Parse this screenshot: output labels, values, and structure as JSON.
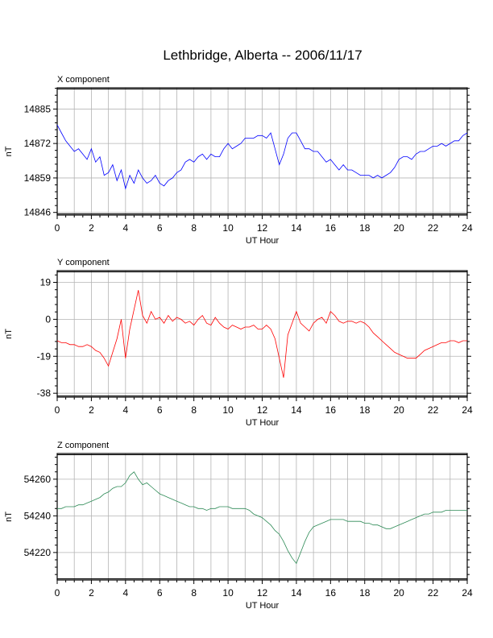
{
  "title": "Lethbridge, Alberta -- 2006/11/17",
  "chart_data": [
    {
      "type": "line",
      "panel_label": "X component",
      "ylabel": "nT",
      "xlabel": "UT Hour",
      "xlim": [
        0,
        24
      ],
      "ylim": [
        14845,
        14893
      ],
      "x_ticks": [
        0,
        2,
        4,
        6,
        8,
        10,
        12,
        14,
        16,
        18,
        20,
        22,
        24
      ],
      "y_ticks": [
        14846,
        14859,
        14872,
        14885
      ],
      "color": "#0000ff",
      "grid": true,
      "x": [
        0,
        0.25,
        0.5,
        0.75,
        1,
        1.25,
        1.5,
        1.75,
        2,
        2.25,
        2.5,
        2.75,
        3,
        3.25,
        3.5,
        3.75,
        4,
        4.25,
        4.5,
        4.75,
        5,
        5.25,
        5.5,
        5.75,
        6,
        6.25,
        6.5,
        6.75,
        7,
        7.25,
        7.5,
        7.75,
        8,
        8.25,
        8.5,
        8.75,
        9,
        9.25,
        9.5,
        9.75,
        10,
        10.25,
        10.5,
        10.75,
        11,
        11.25,
        11.5,
        11.75,
        12,
        12.25,
        12.5,
        12.75,
        13,
        13.25,
        13.5,
        13.75,
        14,
        14.25,
        14.5,
        14.75,
        15,
        15.25,
        15.5,
        15.75,
        16,
        16.25,
        16.5,
        16.75,
        17,
        17.25,
        17.5,
        17.75,
        18,
        18.25,
        18.5,
        18.75,
        19,
        19.25,
        19.5,
        19.75,
        20,
        20.25,
        20.5,
        20.75,
        21,
        21.25,
        21.5,
        21.75,
        22,
        22.25,
        22.5,
        22.75,
        23,
        23.25,
        23.5,
        23.75,
        24
      ],
      "y": [
        14879,
        14876,
        14873,
        14871,
        14869,
        14870,
        14868,
        14866,
        14870,
        14865,
        14867,
        14860,
        14861,
        14864,
        14858,
        14862,
        14855,
        14860,
        14857,
        14862,
        14859,
        14857,
        14858,
        14860,
        14857,
        14856,
        14858,
        14859,
        14861,
        14862,
        14865,
        14866,
        14865,
        14867,
        14868,
        14866,
        14868,
        14867,
        14867,
        14870,
        14872,
        14870,
        14871,
        14872,
        14874,
        14874,
        14874,
        14875,
        14875,
        14874,
        14876,
        14870,
        14864,
        14868,
        14874,
        14876,
        14876,
        14873,
        14870,
        14870,
        14869,
        14869,
        14867,
        14865,
        14866,
        14864,
        14862,
        14864,
        14862,
        14862,
        14861,
        14860,
        14860,
        14860,
        14859,
        14860,
        14859,
        14860,
        14861,
        14863,
        14866,
        14867,
        14867,
        14866,
        14868,
        14869,
        14869,
        14870,
        14871,
        14871,
        14872,
        14871,
        14872,
        14873,
        14873,
        14875,
        14876
      ]
    },
    {
      "type": "line",
      "panel_label": "Y component",
      "ylabel": "nT",
      "xlabel": "UT Hour",
      "xlim": [
        0,
        24
      ],
      "ylim": [
        -40,
        25
      ],
      "x_ticks": [
        0,
        2,
        4,
        6,
        8,
        10,
        12,
        14,
        16,
        18,
        20,
        22,
        24
      ],
      "y_ticks": [
        -38,
        -19,
        0,
        19
      ],
      "color": "#ff0000",
      "grid": true,
      "x": [
        0,
        0.25,
        0.5,
        0.75,
        1,
        1.25,
        1.5,
        1.75,
        2,
        2.25,
        2.5,
        2.75,
        3,
        3.25,
        3.5,
        3.75,
        4,
        4.25,
        4.5,
        4.75,
        5,
        5.25,
        5.5,
        5.75,
        6,
        6.25,
        6.5,
        6.75,
        7,
        7.25,
        7.5,
        7.75,
        8,
        8.25,
        8.5,
        8.75,
        9,
        9.25,
        9.5,
        9.75,
        10,
        10.25,
        10.5,
        10.75,
        11,
        11.25,
        11.5,
        11.75,
        12,
        12.25,
        12.5,
        12.75,
        13,
        13.25,
        13.5,
        13.75,
        14,
        14.25,
        14.5,
        14.75,
        15,
        15.25,
        15.5,
        15.75,
        16,
        16.25,
        16.5,
        16.75,
        17,
        17.25,
        17.5,
        17.75,
        18,
        18.25,
        18.5,
        18.75,
        19,
        19.25,
        19.5,
        19.75,
        20,
        20.25,
        20.5,
        20.75,
        21,
        21.25,
        21.5,
        21.75,
        22,
        22.25,
        22.5,
        22.75,
        23,
        23.25,
        23.5,
        23.75,
        24
      ],
      "y": [
        -11,
        -12,
        -12,
        -13,
        -13,
        -14,
        -14,
        -13,
        -14,
        -16,
        -17,
        -20,
        -24,
        -17,
        -10,
        0,
        -20,
        -5,
        5,
        15,
        2,
        -2,
        4,
        0,
        1,
        -2,
        2,
        -1,
        1,
        0,
        -2,
        -1,
        -3,
        0,
        2,
        -2,
        -3,
        1,
        -2,
        -4,
        -5,
        -3,
        -4,
        -5,
        -4,
        -4,
        -3,
        -5,
        -5,
        -3,
        -5,
        -10,
        -20,
        -30,
        -8,
        -2,
        4,
        -2,
        -4,
        -6,
        -2,
        0,
        1,
        -2,
        4,
        2,
        -1,
        -2,
        -1,
        -1,
        -2,
        -1,
        -2,
        -4,
        -7,
        -9,
        -11,
        -13,
        -15,
        -17,
        -18,
        -19,
        -20,
        -20,
        -20,
        -18,
        -16,
        -15,
        -14,
        -13,
        -12,
        -12,
        -11,
        -11,
        -12,
        -11,
        -11
      ]
    },
    {
      "type": "line",
      "panel_label": "Z component",
      "ylabel": "nT",
      "xlabel": "UT Hour",
      "xlim": [
        0,
        24
      ],
      "ylim": [
        54205,
        54274
      ],
      "x_ticks": [
        0,
        2,
        4,
        6,
        8,
        10,
        12,
        14,
        16,
        18,
        20,
        22,
        24
      ],
      "y_ticks": [
        54220,
        54240,
        54260
      ],
      "color": "#2e8b57",
      "grid": true,
      "x": [
        0,
        0.25,
        0.5,
        0.75,
        1,
        1.25,
        1.5,
        1.75,
        2,
        2.25,
        2.5,
        2.75,
        3,
        3.25,
        3.5,
        3.75,
        4,
        4.25,
        4.5,
        4.75,
        5,
        5.25,
        5.5,
        5.75,
        6,
        6.25,
        6.5,
        6.75,
        7,
        7.25,
        7.5,
        7.75,
        8,
        8.25,
        8.5,
        8.75,
        9,
        9.25,
        9.5,
        9.75,
        10,
        10.25,
        10.5,
        10.75,
        11,
        11.25,
        11.5,
        11.75,
        12,
        12.25,
        12.5,
        12.75,
        13,
        13.25,
        13.5,
        13.75,
        14,
        14.25,
        14.5,
        14.75,
        15,
        15.25,
        15.5,
        15.75,
        16,
        16.25,
        16.5,
        16.75,
        17,
        17.25,
        17.5,
        17.75,
        18,
        18.25,
        18.5,
        18.75,
        19,
        19.25,
        19.5,
        19.75,
        20,
        20.25,
        20.5,
        20.75,
        21,
        21.25,
        21.5,
        21.75,
        22,
        22.25,
        22.5,
        22.75,
        23,
        23.25,
        23.5,
        23.75,
        24
      ],
      "y": [
        54244,
        54244,
        54245,
        54245,
        54245,
        54246,
        54246,
        54247,
        54248,
        54249,
        54250,
        54252,
        54253,
        54255,
        54256,
        54256,
        54258,
        54262,
        54264,
        54260,
        54257,
        54258,
        54256,
        54254,
        54252,
        54251,
        54250,
        54249,
        54248,
        54247,
        54246,
        54245,
        54245,
        54244,
        54244,
        54243,
        54244,
        54244,
        54245,
        54245,
        54245,
        54244,
        54244,
        54244,
        54244,
        54243,
        54241,
        54240,
        54239,
        54237,
        54235,
        54232,
        54230,
        54226,
        54221,
        54217,
        54214,
        54220,
        54226,
        54231,
        54234,
        54235,
        54236,
        54237,
        54238,
        54238,
        54238,
        54238,
        54237,
        54237,
        54237,
        54237,
        54236,
        54236,
        54235,
        54235,
        54234,
        54233,
        54233,
        54234,
        54235,
        54236,
        54237,
        54238,
        54239,
        54240,
        54241,
        54241,
        54242,
        54242,
        54242,
        54243,
        54243,
        54243,
        54243,
        54243,
        54243
      ]
    }
  ]
}
